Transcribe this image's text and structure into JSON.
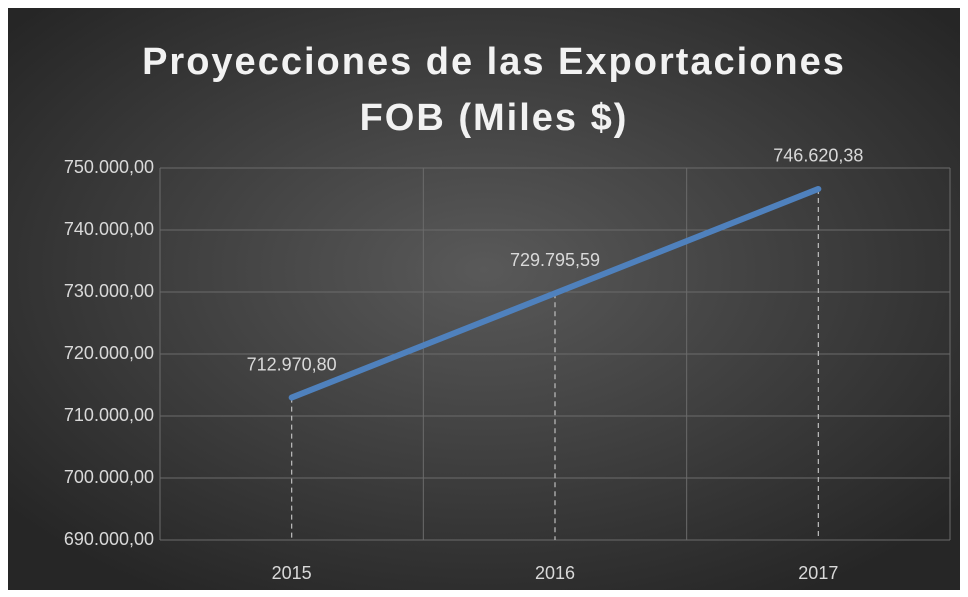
{
  "chart_data": {
    "type": "line",
    "title": "Proyecciones de las Exportaciones FOB (Miles $)",
    "categories": [
      "2015",
      "2016",
      "2017"
    ],
    "series": [
      {
        "name": "Exportaciones FOB",
        "color": "#4f81bd",
        "values": [
          712970.8,
          729795.59,
          746620.38
        ],
        "value_labels": [
          "712.970,80",
          "729.795,59",
          "746.620,38"
        ]
      }
    ],
    "ylim": [
      690000,
      750000
    ],
    "yticks": [
      {
        "value": 690000,
        "label": "690.000,00"
      },
      {
        "value": 700000,
        "label": "700.000,00"
      },
      {
        "value": 710000,
        "label": "710.000,00"
      },
      {
        "value": 720000,
        "label": "720.000,00"
      },
      {
        "value": 730000,
        "label": "730.000,00"
      },
      {
        "value": 740000,
        "label": "740.000,00"
      },
      {
        "value": 750000,
        "label": "750.000,00"
      }
    ],
    "grid": true,
    "drop_lines": true
  }
}
